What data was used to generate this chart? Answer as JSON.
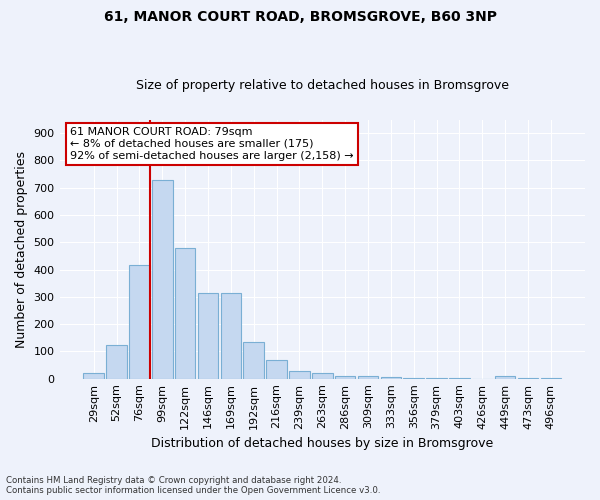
{
  "title1": "61, MANOR COURT ROAD, BROMSGROVE, B60 3NP",
  "title2": "Size of property relative to detached houses in Bromsgrove",
  "xlabel": "Distribution of detached houses by size in Bromsgrove",
  "ylabel": "Number of detached properties",
  "bar_color": "#c5d8f0",
  "bar_edge_color": "#7aafd4",
  "categories": [
    "29sqm",
    "52sqm",
    "76sqm",
    "99sqm",
    "122sqm",
    "146sqm",
    "169sqm",
    "192sqm",
    "216sqm",
    "239sqm",
    "263sqm",
    "286sqm",
    "309sqm",
    "333sqm",
    "356sqm",
    "379sqm",
    "403sqm",
    "426sqm",
    "449sqm",
    "473sqm",
    "496sqm"
  ],
  "values": [
    20,
    122,
    418,
    730,
    480,
    315,
    315,
    135,
    68,
    28,
    22,
    10,
    8,
    5,
    2,
    1,
    1,
    0,
    8,
    1,
    1
  ],
  "vline_x_idx": 2,
  "vline_color": "#cc0000",
  "annotation_line1": "61 MANOR COURT ROAD: 79sqm",
  "annotation_line2": "← 8% of detached houses are smaller (175)",
  "annotation_line3": "92% of semi-detached houses are larger (2,158) →",
  "annotation_box_color": "#ffffff",
  "annotation_box_edge": "#cc0000",
  "ylim": [
    0,
    950
  ],
  "yticks": [
    0,
    100,
    200,
    300,
    400,
    500,
    600,
    700,
    800,
    900
  ],
  "footer1": "Contains HM Land Registry data © Crown copyright and database right 2024.",
  "footer2": "Contains public sector information licensed under the Open Government Licence v3.0.",
  "bg_color": "#eef2fb",
  "grid_color": "#ffffff",
  "title1_fontsize": 10,
  "title2_fontsize": 9,
  "ylabel_fontsize": 9,
  "xlabel_fontsize": 9,
  "tick_fontsize": 8,
  "annot_fontsize": 8
}
